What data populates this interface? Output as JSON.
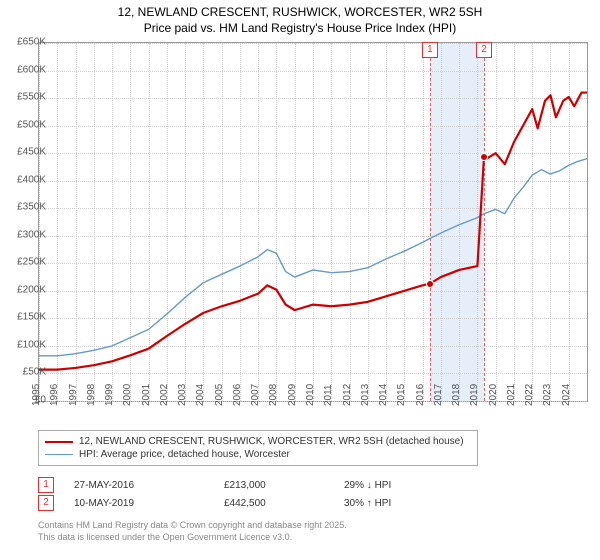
{
  "title_line1": "12, NEWLAND CRESCENT, RUSHWICK, WORCESTER, WR2 5SH",
  "title_line2": "Price paid vs. HM Land Registry's House Price Index (HPI)",
  "chart": {
    "type": "line",
    "background_color": "#ffffff",
    "grid_color": "#cccccc",
    "border_color": "#999999",
    "ylim": [
      0,
      650000
    ],
    "ytick_step": 50000,
    "y_prefix": "£",
    "y_suffix": "K",
    "xlim": [
      1995,
      2025
    ],
    "xtick_step": 1,
    "x_labels": [
      "1995",
      "1996",
      "1997",
      "1998",
      "1999",
      "2000",
      "2001",
      "2002",
      "2003",
      "2004",
      "2005",
      "2006",
      "2007",
      "2008",
      "2009",
      "2010",
      "2011",
      "2012",
      "2013",
      "2014",
      "2015",
      "2016",
      "2017",
      "2018",
      "2019",
      "2020",
      "2021",
      "2022",
      "2023",
      "2024"
    ],
    "marker_band": {
      "from": 2016.4,
      "to": 2019.36,
      "color": "#e6eef9"
    },
    "markers": [
      {
        "num": "1",
        "x": 2016.4,
        "line_color": "#dd6666"
      },
      {
        "num": "2",
        "x": 2019.36,
        "line_color": "#dd6666"
      }
    ],
    "series": [
      {
        "name": "price_paid",
        "color": "#cc0000",
        "width": 2.2,
        "legend": "12, NEWLAND CRESCENT, RUSHWICK, WORCESTER, WR2 5SH (detached house)",
        "points": [
          [
            1995,
            57000
          ],
          [
            1996,
            57000
          ],
          [
            1997,
            60000
          ],
          [
            1998,
            65000
          ],
          [
            1999,
            72000
          ],
          [
            2000,
            83000
          ],
          [
            2001,
            95000
          ],
          [
            2002,
            118000
          ],
          [
            2003,
            140000
          ],
          [
            2004,
            160000
          ],
          [
            2005,
            172000
          ],
          [
            2006,
            182000
          ],
          [
            2007,
            195000
          ],
          [
            2007.5,
            210000
          ],
          [
            2008,
            202000
          ],
          [
            2008.5,
            175000
          ],
          [
            2009,
            165000
          ],
          [
            2010,
            175000
          ],
          [
            2011,
            172000
          ],
          [
            2012,
            175000
          ],
          [
            2013,
            180000
          ],
          [
            2014,
            190000
          ],
          [
            2015,
            200000
          ],
          [
            2016,
            210000
          ],
          [
            2016.4,
            213000
          ],
          [
            2017,
            225000
          ],
          [
            2018,
            238000
          ],
          [
            2019,
            245000
          ],
          [
            2019.36,
            442500
          ],
          [
            2019.5,
            440000
          ],
          [
            2020,
            450000
          ],
          [
            2020.5,
            430000
          ],
          [
            2021,
            470000
          ],
          [
            2021.5,
            500000
          ],
          [
            2022,
            530000
          ],
          [
            2022.3,
            495000
          ],
          [
            2022.7,
            545000
          ],
          [
            2023,
            555000
          ],
          [
            2023.3,
            515000
          ],
          [
            2023.7,
            545000
          ],
          [
            2024,
            552000
          ],
          [
            2024.3,
            535000
          ],
          [
            2024.7,
            560000
          ],
          [
            2025,
            560000
          ]
        ],
        "highlight_points": [
          {
            "x": 2016.4,
            "y": 213000
          },
          {
            "x": 2019.36,
            "y": 442500
          }
        ]
      },
      {
        "name": "hpi",
        "color": "#6699cc",
        "width": 1.4,
        "legend": "HPI: Average price, detached house, Worcester",
        "points": [
          [
            1995,
            82000
          ],
          [
            1996,
            82000
          ],
          [
            1997,
            86000
          ],
          [
            1998,
            92000
          ],
          [
            1999,
            100000
          ],
          [
            2000,
            115000
          ],
          [
            2001,
            130000
          ],
          [
            2002,
            158000
          ],
          [
            2003,
            188000
          ],
          [
            2004,
            215000
          ],
          [
            2005,
            230000
          ],
          [
            2006,
            245000
          ],
          [
            2007,
            262000
          ],
          [
            2007.5,
            275000
          ],
          [
            2008,
            268000
          ],
          [
            2008.5,
            235000
          ],
          [
            2009,
            225000
          ],
          [
            2010,
            238000
          ],
          [
            2011,
            233000
          ],
          [
            2012,
            235000
          ],
          [
            2013,
            242000
          ],
          [
            2014,
            258000
          ],
          [
            2015,
            272000
          ],
          [
            2016,
            288000
          ],
          [
            2016.4,
            295000
          ],
          [
            2017,
            305000
          ],
          [
            2018,
            320000
          ],
          [
            2019,
            333000
          ],
          [
            2019.36,
            340000
          ],
          [
            2020,
            348000
          ],
          [
            2020.5,
            340000
          ],
          [
            2021,
            368000
          ],
          [
            2021.5,
            388000
          ],
          [
            2022,
            410000
          ],
          [
            2022.5,
            420000
          ],
          [
            2023,
            412000
          ],
          [
            2023.5,
            418000
          ],
          [
            2024,
            428000
          ],
          [
            2024.5,
            435000
          ],
          [
            2025,
            440000
          ]
        ]
      }
    ]
  },
  "sales": [
    {
      "num": "1",
      "date": "27-MAY-2016",
      "price": "£213,000",
      "delta": "29% ↓ HPI"
    },
    {
      "num": "2",
      "date": "10-MAY-2019",
      "price": "£442,500",
      "delta": "30% ↑ HPI"
    }
  ],
  "footer_line1": "Contains HM Land Registry data © Crown copyright and database right 2025.",
  "footer_line2": "This data is licensed under the Open Government Licence v3.0."
}
